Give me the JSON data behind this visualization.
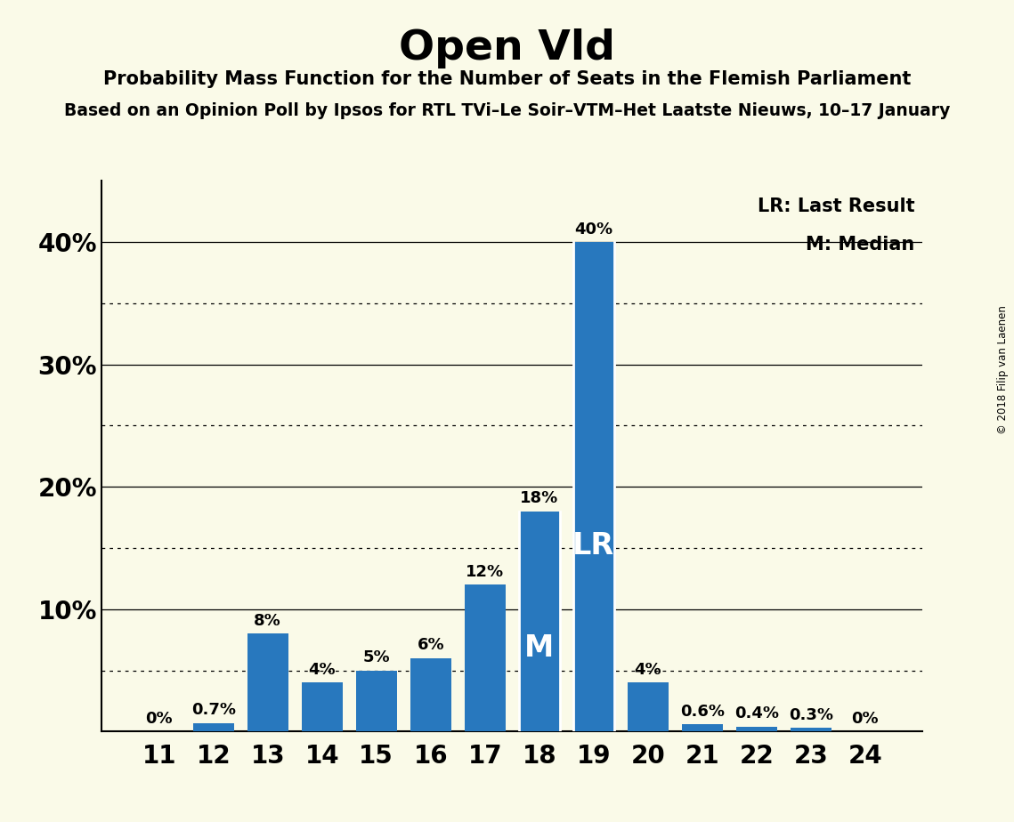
{
  "title": "Open Vld",
  "subtitle": "Probability Mass Function for the Number of Seats in the Flemish Parliament",
  "source_line": "Based on an Opinion Poll by Ipsos for RTL TVi–Le Soir–VTM–Het Laatste Nieuws, 10–17 January",
  "copyright": "© 2018 Filip van Laenen",
  "categories": [
    11,
    12,
    13,
    14,
    15,
    16,
    17,
    18,
    19,
    20,
    21,
    22,
    23,
    24
  ],
  "values": [
    0.0,
    0.7,
    8.0,
    4.0,
    5.0,
    6.0,
    12.0,
    18.0,
    40.0,
    4.0,
    0.6,
    0.4,
    0.3,
    0.0
  ],
  "labels": [
    "0%",
    "0.7%",
    "8%",
    "4%",
    "5%",
    "6%",
    "12%",
    "18%",
    "40%",
    "4%",
    "0.6%",
    "0.4%",
    "0.3%",
    "0%"
  ],
  "bar_color": "#2878BE",
  "background_color": "#FAFAE8",
  "lr_seat": 19,
  "median_seat": 18,
  "lr_label": "LR",
  "median_label": "M",
  "legend_lr": "LR: Last Result",
  "legend_m": "M: Median",
  "ylim": [
    0,
    45
  ],
  "solid_yticks": [
    10,
    20,
    30,
    40
  ],
  "dotted_yticks": [
    5,
    15,
    25,
    35
  ]
}
